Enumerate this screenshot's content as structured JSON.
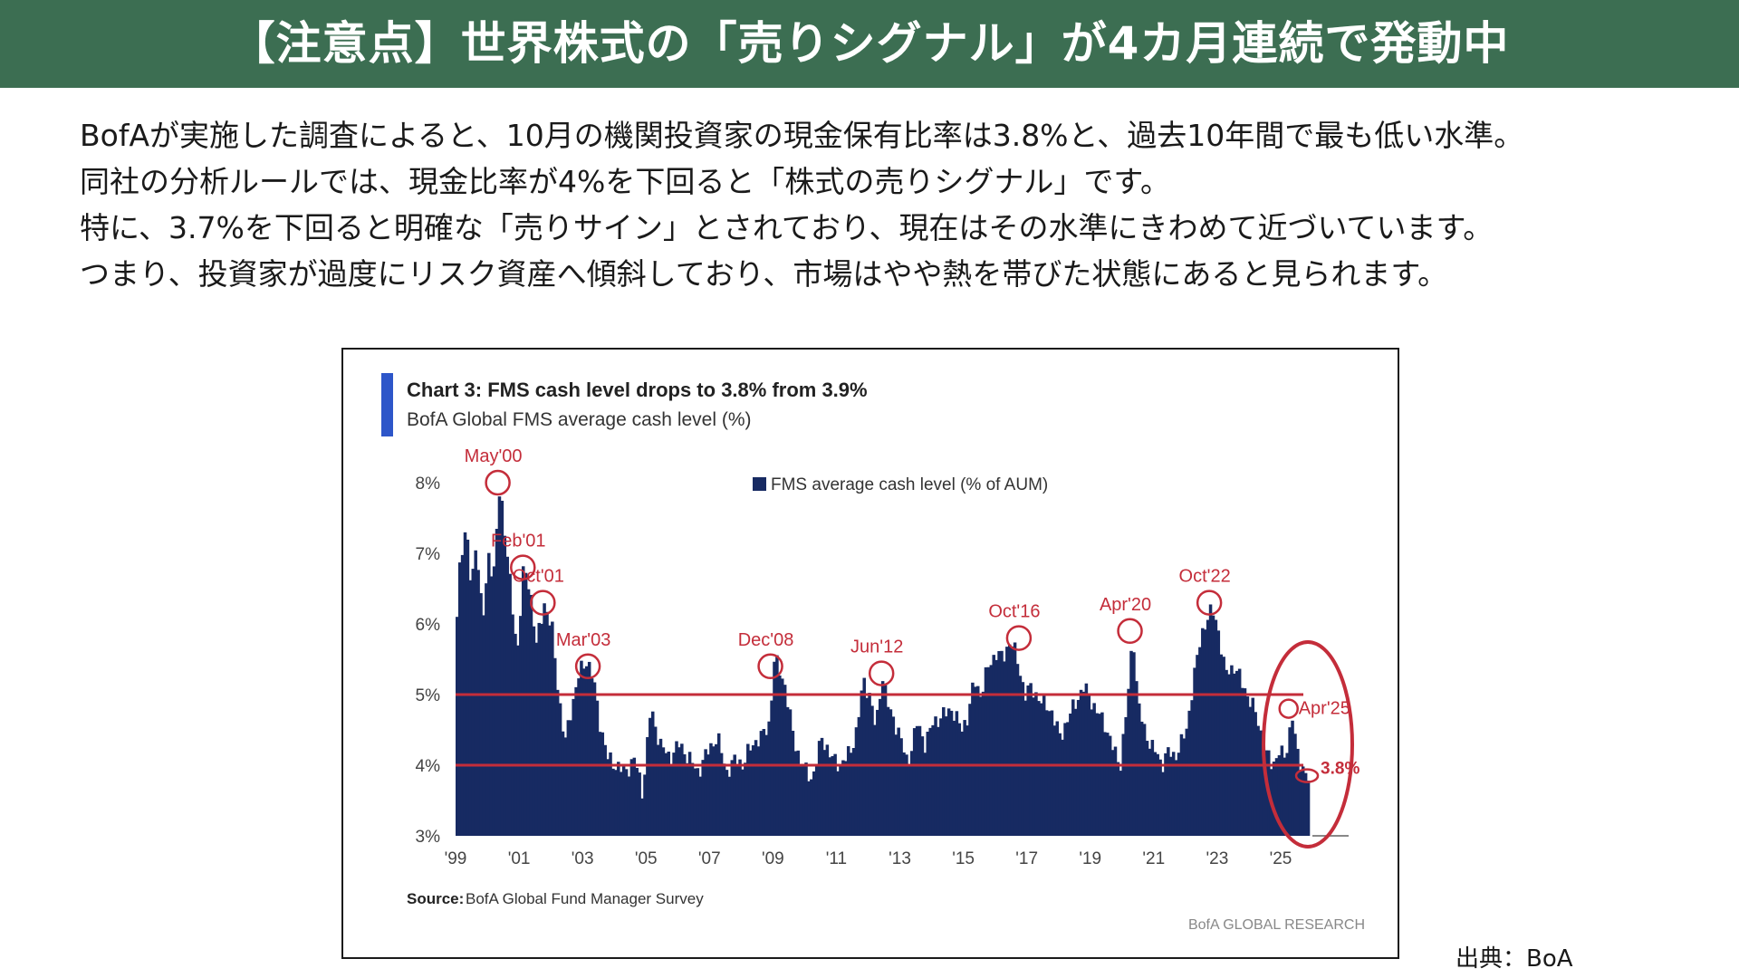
{
  "header": {
    "title": "【注意点】世界株式の「売りシグナル」が4カ月連続で発動中"
  },
  "body": {
    "paragraphs": [
      "BofAが実施した調査によると、10月の機関投資家の現金保有比率は3.8%と、過去10年間で最も低い水準。",
      "同社の分析ルールでは、現金比率が4%を下回ると「株式の売りシグナル」です。",
      "特に、3.7%を下回ると明確な「売りサイン」とされており、現在はその水準にきわめて近づいています。",
      "つまり、投資家が過度にリスク資産へ傾斜しており、市場はやや熱を帯びた状態にあると見られます。"
    ]
  },
  "chart_data": {
    "type": "bar",
    "title": "Chart 3: FMS cash level drops to 3.8% from 3.9%",
    "subtitle": "BofA Global FMS average cash level (%)",
    "legend": "FMS average cash level (% of AUM)",
    "legend_position": "top-center",
    "x_start": 1999.0,
    "x_end": 2026.0,
    "x_step": 0.0833,
    "ylim": [
      3,
      8.5
    ],
    "y_ticks": [
      8,
      7,
      6,
      5,
      4,
      3
    ],
    "y_tick_labels": [
      "8%",
      "7%",
      "6%",
      "5%",
      "4%",
      "3%"
    ],
    "x_ticks": [
      1999,
      2001,
      2003,
      2005,
      2007,
      2009,
      2011,
      2013,
      2015,
      2017,
      2019,
      2021,
      2023,
      2025
    ],
    "x_tick_labels": [
      "'99",
      "'01",
      "'03",
      "'05",
      "'07",
      "'09",
      "'11",
      "'13",
      "'15",
      "'17",
      "'19",
      "'21",
      "'23",
      "'25"
    ],
    "reference_lines": [
      5.0,
      4.0
    ],
    "keypoints": [
      [
        1999.0,
        6.1
      ],
      [
        1999.1,
        7.0
      ],
      [
        1999.3,
        7.3
      ],
      [
        1999.45,
        6.5
      ],
      [
        1999.6,
        7.2
      ],
      [
        1999.8,
        6.0
      ],
      [
        2000.0,
        7.0
      ],
      [
        2000.15,
        6.6
      ],
      [
        2000.35,
        8.0
      ],
      [
        2000.55,
        7.1
      ],
      [
        2000.75,
        6.2
      ],
      [
        2000.9,
        5.6
      ],
      [
        2001.1,
        6.8
      ],
      [
        2001.3,
        6.5
      ],
      [
        2001.5,
        5.7
      ],
      [
        2001.75,
        6.3
      ],
      [
        2002.0,
        5.9
      ],
      [
        2002.2,
        5.0
      ],
      [
        2002.4,
        4.3
      ],
      [
        2002.6,
        4.8
      ],
      [
        2002.85,
        5.3
      ],
      [
        2003.1,
        5.5
      ],
      [
        2003.3,
        5.2
      ],
      [
        2003.5,
        4.6
      ],
      [
        2003.75,
        4.1
      ],
      [
        2004.0,
        4.0
      ],
      [
        2004.3,
        3.9
      ],
      [
        2004.6,
        4.1
      ],
      [
        2004.85,
        3.6
      ],
      [
        2005.1,
        4.8
      ],
      [
        2005.4,
        4.3
      ],
      [
        2005.7,
        4.1
      ],
      [
        2006.0,
        4.3
      ],
      [
        2006.3,
        4.1
      ],
      [
        2006.6,
        3.9
      ],
      [
        2006.9,
        4.2
      ],
      [
        2007.2,
        4.4
      ],
      [
        2007.5,
        3.9
      ],
      [
        2007.8,
        4.1
      ],
      [
        2008.0,
        4.0
      ],
      [
        2008.3,
        4.3
      ],
      [
        2008.6,
        4.4
      ],
      [
        2008.85,
        4.6
      ],
      [
        2009.0,
        5.5
      ],
      [
        2009.3,
        5.2
      ],
      [
        2009.6,
        4.4
      ],
      [
        2009.85,
        4.0
      ],
      [
        2010.2,
        3.8
      ],
      [
        2010.5,
        4.4
      ],
      [
        2010.8,
        4.1
      ],
      [
        2011.1,
        4.0
      ],
      [
        2011.4,
        4.2
      ],
      [
        2011.6,
        4.5
      ],
      [
        2011.8,
        5.2
      ],
      [
        2012.0,
        5.0
      ],
      [
        2012.2,
        4.5
      ],
      [
        2012.4,
        5.3
      ],
      [
        2012.6,
        4.8
      ],
      [
        2012.9,
        4.5
      ],
      [
        2013.2,
        4.0
      ],
      [
        2013.5,
        4.6
      ],
      [
        2013.75,
        4.3
      ],
      [
        2014.0,
        4.6
      ],
      [
        2014.3,
        4.7
      ],
      [
        2014.6,
        4.8
      ],
      [
        2014.9,
        4.5
      ],
      [
        2015.1,
        4.7
      ],
      [
        2015.3,
        5.2
      ],
      [
        2015.5,
        5.0
      ],
      [
        2015.75,
        5.4
      ],
      [
        2016.0,
        5.6
      ],
      [
        2016.2,
        5.5
      ],
      [
        2016.45,
        5.8
      ],
      [
        2016.7,
        5.4
      ],
      [
        2016.9,
        5.0
      ],
      [
        2017.1,
        5.1
      ],
      [
        2017.4,
        4.9
      ],
      [
        2017.7,
        4.8
      ],
      [
        2018.0,
        4.4
      ],
      [
        2018.2,
        4.6
      ],
      [
        2018.5,
        4.9
      ],
      [
        2018.75,
        5.1
      ],
      [
        2018.9,
        5.0
      ],
      [
        2019.1,
        4.8
      ],
      [
        2019.4,
        4.6
      ],
      [
        2019.7,
        4.2
      ],
      [
        2019.9,
        4.0
      ],
      [
        2020.05,
        4.6
      ],
      [
        2020.15,
        5.0
      ],
      [
        2020.3,
        5.9
      ],
      [
        2020.45,
        4.9
      ],
      [
        2020.65,
        4.5
      ],
      [
        2020.85,
        4.3
      ],
      [
        2021.0,
        4.2
      ],
      [
        2021.2,
        4.0
      ],
      [
        2021.4,
        4.2
      ],
      [
        2021.6,
        4.1
      ],
      [
        2021.8,
        4.3
      ],
      [
        2022.0,
        4.5
      ],
      [
        2022.2,
        5.2
      ],
      [
        2022.4,
        5.7
      ],
      [
        2022.55,
        6.0
      ],
      [
        2022.8,
        6.2
      ],
      [
        2023.0,
        5.9
      ],
      [
        2023.2,
        5.3
      ],
      [
        2023.5,
        5.4
      ],
      [
        2023.8,
        5.1
      ],
      [
        2024.0,
        4.9
      ],
      [
        2024.2,
        4.7
      ],
      [
        2024.45,
        4.2
      ],
      [
        2024.7,
        4.0
      ],
      [
        2024.9,
        4.2
      ],
      [
        2025.05,
        4.1
      ],
      [
        2025.2,
        4.3
      ],
      [
        2025.3,
        4.8
      ],
      [
        2025.45,
        4.2
      ],
      [
        2025.6,
        4.0
      ],
      [
        2025.75,
        3.9
      ],
      [
        2025.83,
        3.8
      ]
    ],
    "annotations": [
      {
        "label": "May'00",
        "x": 2000.33,
        "y": 8.0
      },
      {
        "label": "Feb'01",
        "x": 2001.12,
        "y": 6.8
      },
      {
        "label": "Oct'01",
        "x": 2001.75,
        "y": 6.3
      },
      {
        "label": "Mar'03",
        "x": 2003.17,
        "y": 5.4
      },
      {
        "label": "Dec'08",
        "x": 2008.92,
        "y": 5.4
      },
      {
        "label": "Jun'12",
        "x": 2012.42,
        "y": 5.3
      },
      {
        "label": "Oct'16",
        "x": 2016.75,
        "y": 5.8
      },
      {
        "label": "Apr'20",
        "x": 2020.25,
        "y": 5.9
      },
      {
        "label": "Oct'22",
        "x": 2022.75,
        "y": 6.3
      },
      {
        "label": "Apr'25",
        "x": 2025.25,
        "y": 4.8
      },
      {
        "label": "3.8%",
        "x": 2025.83,
        "y": 3.8
      }
    ],
    "source_label": "Source:",
    "source_text": "BofA Global Fund Manager Survey",
    "brand": "BofA GLOBAL RESEARCH",
    "colors": {
      "bars": "#172a62",
      "annotation": "#c42d3a",
      "accent": "#2d56c9"
    }
  },
  "footer": {
    "credit": "出典：BoA"
  }
}
